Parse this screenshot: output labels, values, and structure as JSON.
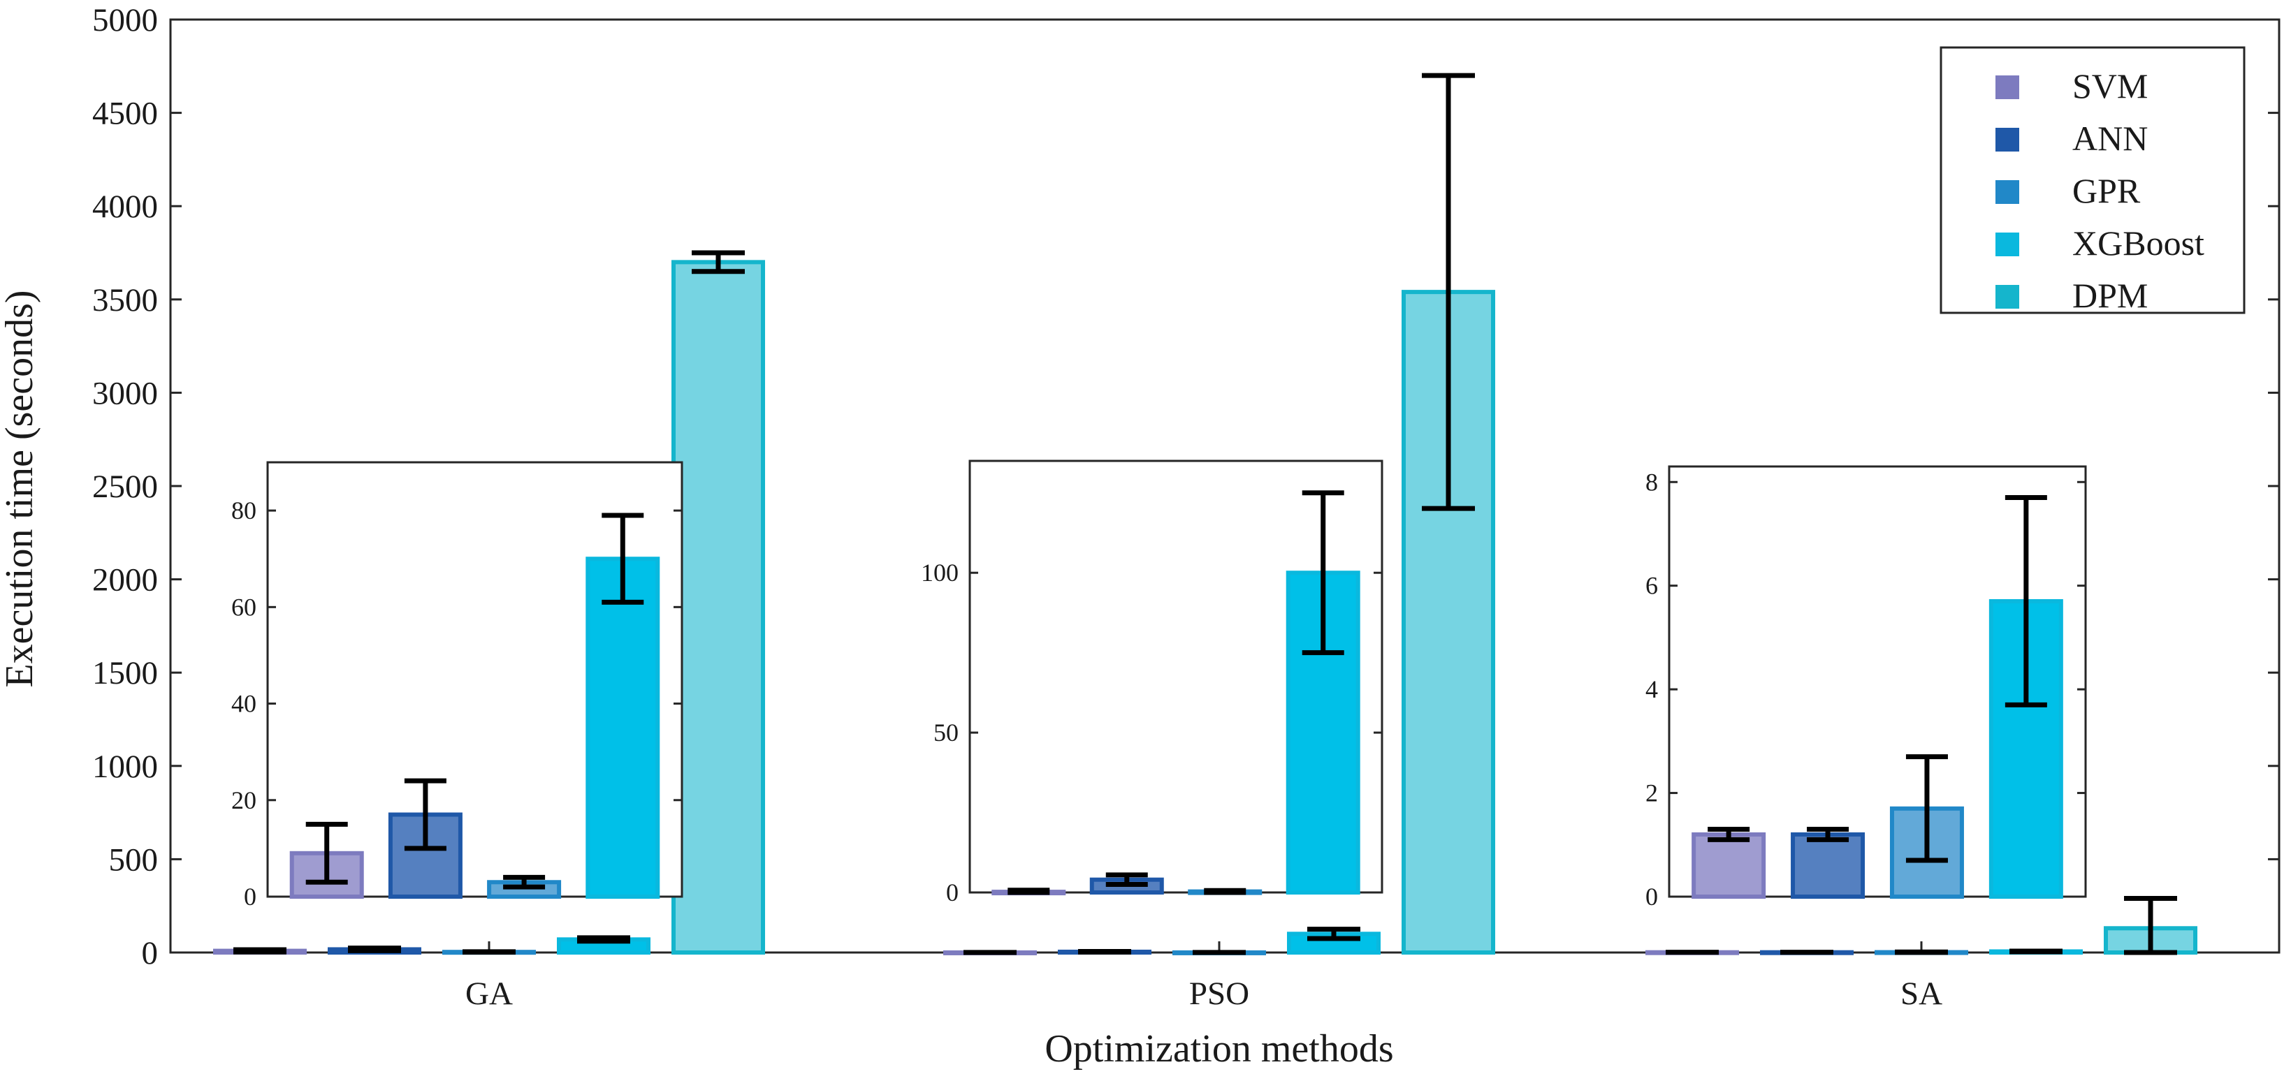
{
  "chart_data": {
    "type": "bar",
    "title": "",
    "xlabel": "Optimization methods",
    "ylabel": "Execution time (seconds)",
    "categories": [
      "GA",
      "PSO",
      "SA"
    ],
    "ylim": [
      0,
      5000
    ],
    "yticks": [
      0,
      500,
      1000,
      1500,
      2000,
      2500,
      3000,
      3500,
      4000,
      4500,
      5000
    ],
    "legend_position": "top-right",
    "series": [
      {
        "name": "SVM",
        "color": "#7d7bbf",
        "fill": "#9f9cd0",
        "values": [
          9,
          0.2,
          1.2
        ],
        "errors": [
          6,
          0.5,
          0.1
        ]
      },
      {
        "name": "ANN",
        "color": "#1f58a8",
        "fill": "#5580c0",
        "values": [
          17,
          4,
          1.2
        ],
        "errors": [
          7,
          1.5,
          0.1
        ]
      },
      {
        "name": "GPR",
        "color": "#2188c8",
        "fill": "#62a9d8",
        "values": [
          3,
          0.3,
          1.7
        ],
        "errors": [
          1,
          0.3,
          1.0
        ]
      },
      {
        "name": "XGBoost",
        "color": "#0ab8de",
        "fill": "#00c0e8",
        "values": [
          70,
          100,
          5.7
        ],
        "errors": [
          9,
          25,
          2.0
        ]
      },
      {
        "name": "DPM",
        "color": "#15b5cc",
        "fill": "#76d4e2",
        "values": [
          3700,
          3540,
          130
        ],
        "errors": [
          50,
          1160,
          160
        ]
      }
    ],
    "insets": [
      {
        "category": "GA",
        "ylim": [
          0,
          90
        ],
        "yticks": [
          0,
          20,
          40,
          60,
          80
        ],
        "series_shown": [
          "SVM",
          "ANN",
          "GPR",
          "XGBoost"
        ]
      },
      {
        "category": "PSO",
        "ylim": [
          0,
          135
        ],
        "yticks": [
          0,
          50,
          100
        ],
        "series_shown": [
          "SVM",
          "ANN",
          "GPR",
          "XGBoost"
        ]
      },
      {
        "category": "SA",
        "ylim": [
          0,
          8.3
        ],
        "yticks": [
          0,
          2,
          4,
          6,
          8
        ],
        "series_shown": [
          "SVM",
          "ANN",
          "GPR",
          "XGBoost"
        ]
      }
    ]
  }
}
